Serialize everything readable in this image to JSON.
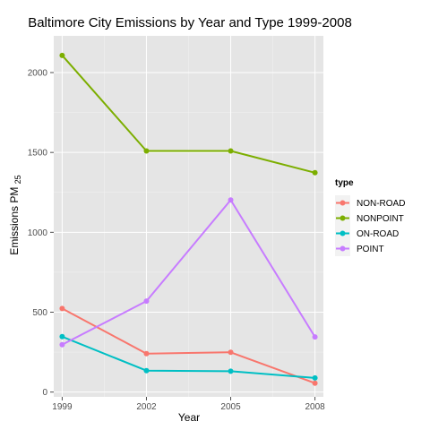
{
  "chart_data": {
    "type": "line",
    "title": "Baltimore City Emissions by Year and Type 1999-2008",
    "xlabel": "Year",
    "ylabel_main": "Emissions PM",
    "ylabel_sub": "25",
    "x": [
      1999,
      2002,
      2005,
      2008
    ],
    "x_tick_labels": [
      "1999",
      "2002",
      "2005",
      "2008"
    ],
    "xlim": [
      1998.7,
      2008.3
    ],
    "ylim": [
      -30,
      2230
    ],
    "y_ticks": [
      0,
      500,
      1000,
      1500,
      2000
    ],
    "y_tick_labels": [
      "0",
      "500",
      "1000",
      "1500",
      "2000"
    ],
    "grid": true,
    "background": "#e5e5e5",
    "legend": {
      "title": "type",
      "position": "right"
    },
    "series": [
      {
        "name": "NON-ROAD",
        "color": "#f8766d",
        "values": [
          522.94,
          240.85,
          248.93,
          55.82
        ]
      },
      {
        "name": "NONPOINT",
        "color": "#7cae00",
        "values": [
          2107.63,
          1509.5,
          1509.5,
          1373.21
        ]
      },
      {
        "name": "ON-ROAD",
        "color": "#00bfc4",
        "values": [
          346.82,
          134.31,
          130.43,
          88.28
        ]
      },
      {
        "name": "POINT",
        "color": "#c77cff",
        "values": [
          296.8,
          569.26,
          1202.49,
          344.98
        ]
      }
    ]
  }
}
